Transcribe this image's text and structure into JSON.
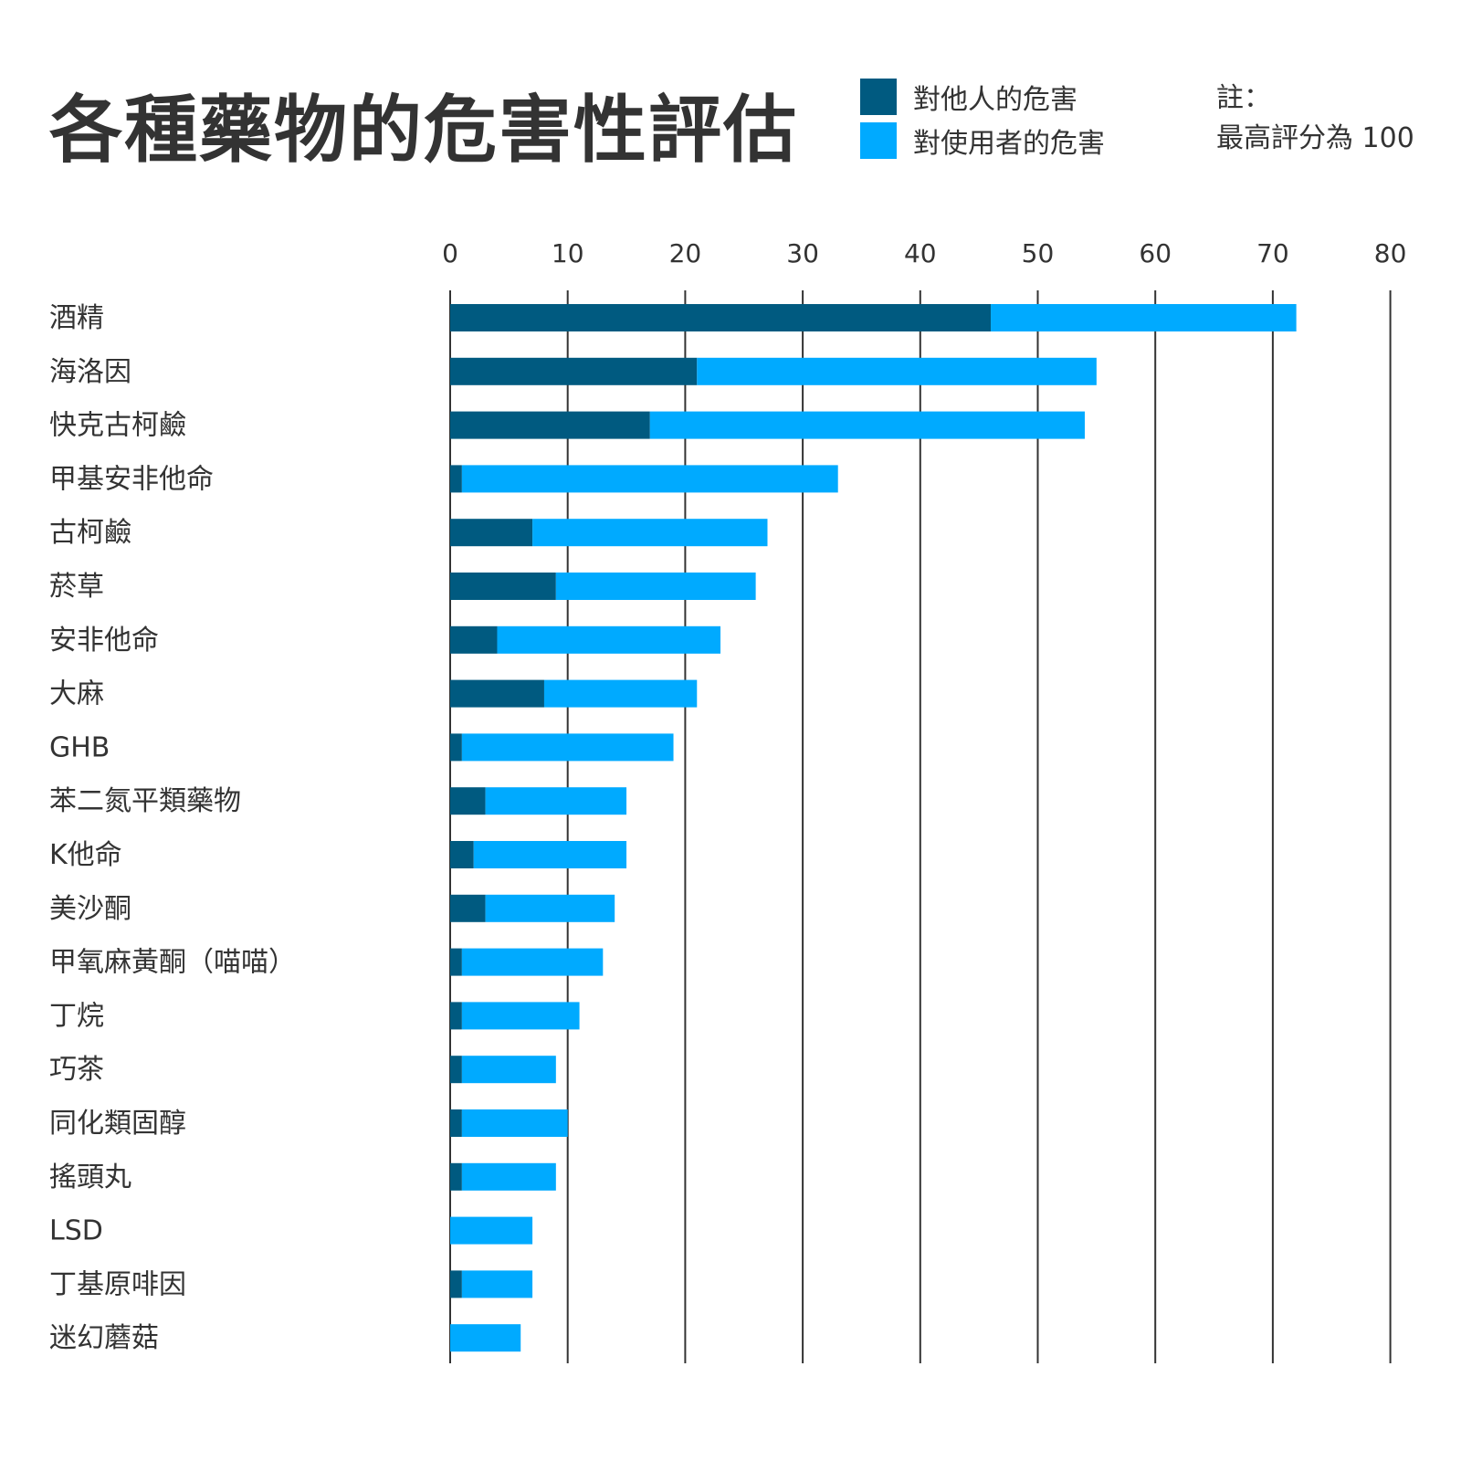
{
  "title": "各種藥物的危害性評估",
  "legend": [
    {
      "label": "對他人的危害",
      "color": "#005a80"
    },
    {
      "label": "對使用者的危害",
      "color": "#00aaff"
    }
  ],
  "note": {
    "line1": "註：",
    "line2": "最高評分為 100"
  },
  "chart_data": {
    "type": "bar",
    "orientation": "horizontal",
    "stacked": true,
    "title": "各種藥物的危害性評估",
    "xlim": [
      0,
      80
    ],
    "xticks": [
      0,
      10,
      20,
      30,
      40,
      50,
      60,
      70,
      80
    ],
    "grid": true,
    "legend_position": "top-right",
    "categories": [
      "酒精",
      "海洛因",
      "快克古柯鹼",
      "甲基安非他命",
      "古柯鹼",
      "菸草",
      "安非他命",
      "大麻",
      "GHB",
      "苯二氮平類藥物",
      "K他命",
      "美沙酮",
      "甲氧麻黃酮（喵喵）",
      "丁烷",
      "巧茶",
      "同化類固醇",
      "搖頭丸",
      "LSD",
      "丁基原啡因",
      "迷幻蘑菇"
    ],
    "series": [
      {
        "name": "對他人的危害",
        "color": "#005a80",
        "values": [
          46,
          21,
          17,
          1,
          7,
          9,
          4,
          8,
          1,
          3,
          2,
          3,
          1,
          1,
          1,
          1,
          1,
          0,
          1,
          0
        ]
      },
      {
        "name": "對使用者的危害",
        "color": "#00aaff",
        "values": [
          26,
          34,
          37,
          32,
          20,
          17,
          19,
          13,
          18,
          12,
          13,
          11,
          12,
          10,
          8,
          9,
          8,
          7,
          6,
          6
        ]
      }
    ]
  }
}
